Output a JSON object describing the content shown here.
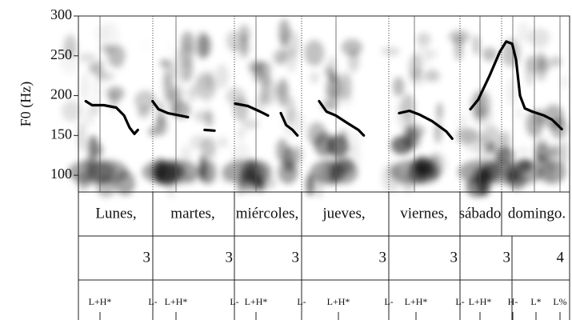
{
  "chart_data": {
    "type": "line",
    "y_label": "F0 (Hz)",
    "ylim": [
      79,
      300
    ],
    "yticks": [
      100,
      150,
      200,
      250,
      300
    ],
    "xlim": [
      0,
      100
    ],
    "color": "#000000",
    "x": [
      1.5,
      2.8,
      5.2,
      7.7,
      9.3,
      10.4,
      11.4,
      12.1,
      13.6,
      15.1,
      16.3,
      18.2,
      20.7,
      22.3,
      24.0,
      25.7,
      27.7,
      29.8,
      31.9,
      34.5,
      37.0,
      38.6,
      39.9,
      41.2,
      42.3,
      43.6,
      44.6,
      46.8,
      49.0,
      50.5,
      52.4,
      54.9,
      57.0,
      58.1,
      61.7,
      65.3,
      67.4,
      69.5,
      72.0,
      74.9,
      76.1,
      78.0,
      79.8,
      81.4,
      83.7,
      85.8,
      87.1,
      88.3,
      89.1,
      89.9,
      90.9,
      92.4,
      94.8,
      96.4,
      98.4
    ],
    "values": [
      193,
      188,
      188,
      185,
      175,
      160,
      152,
      157,
      null,
      193,
      183,
      178,
      175,
      173,
      null,
      157,
      156,
      null,
      190,
      187,
      180,
      175,
      null,
      178,
      163,
      157,
      150,
      null,
      193,
      180,
      175,
      165,
      157,
      150,
      null,
      178,
      181,
      176,
      168,
      155,
      146,
      null,
      183,
      195,
      225,
      255,
      268,
      265,
      245,
      200,
      184,
      180,
      175,
      170,
      158
    ]
  },
  "tiers": {
    "words": [
      "Lunes,",
      "martes,",
      "miércoles,",
      "jueves,",
      "viernes,",
      "sábado",
      "domingo."
    ],
    "breaks": [
      "3",
      "3",
      "3",
      "3",
      "3",
      "3",
      "4"
    ],
    "tones": [
      "L+H*",
      "L-",
      "L+H*",
      "L-",
      "L+H*",
      "L-",
      "L+H*",
      "L-",
      "L+H*",
      "L-",
      "L+H*",
      "H-",
      "L*",
      "L%"
    ]
  }
}
